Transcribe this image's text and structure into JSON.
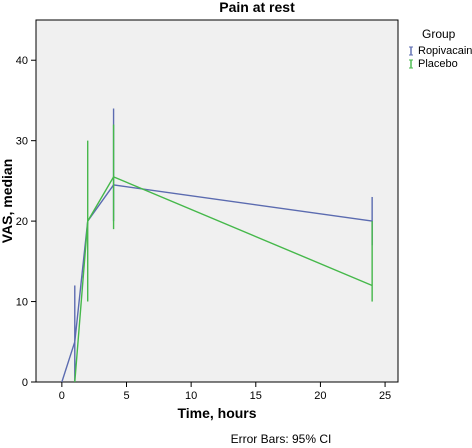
{
  "chart_data": {
    "type": "line",
    "title": "Pain at rest",
    "xlabel": "Time, hours",
    "ylabel": "VAS, median",
    "xlim": [
      -2,
      26
    ],
    "ylim": [
      0,
      45
    ],
    "x_ticks": [
      0,
      5,
      10,
      15,
      20,
      25
    ],
    "y_ticks": [
      0,
      10,
      20,
      30,
      40
    ],
    "grid": false,
    "legend_title": "Group",
    "legend_position": "right",
    "footnote": "Error Bars: 95% CI",
    "series": [
      {
        "name": "Ropivacaine",
        "color": "#5b6bb0",
        "x": [
          0,
          1,
          2,
          4,
          24
        ],
        "y": [
          0,
          5,
          20,
          24.5,
          20
        ],
        "ci_low": [
          0,
          0,
          20,
          20,
          17
        ],
        "ci_high": [
          0,
          12,
          20,
          34,
          23
        ]
      },
      {
        "name": "Placebo",
        "color": "#45b84a",
        "x": [
          1,
          2,
          4,
          24
        ],
        "y": [
          0,
          20,
          25.5,
          12
        ],
        "ci_low": [
          0,
          10,
          19,
          10
        ],
        "ci_high": [
          0,
          30,
          32,
          20
        ]
      }
    ]
  }
}
